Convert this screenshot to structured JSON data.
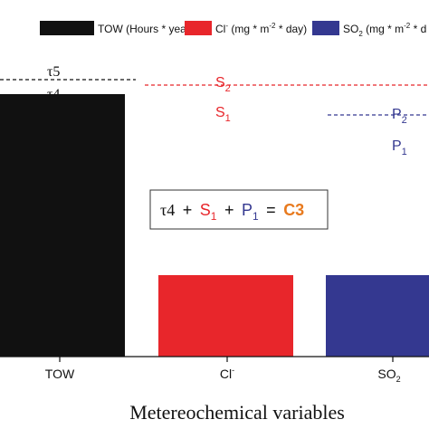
{
  "chart_data": {
    "type": "bar",
    "categories": [
      "TOW",
      "Cl",
      "SO2"
    ],
    "values": [
      2900,
      900,
      900
    ],
    "series": [
      {
        "name": "TOW (Hours * year-1)",
        "color": "#111111"
      },
      {
        "name": "Cl- (mg * m-2 * day)",
        "color": "#e8262b"
      },
      {
        "name": "SO2 (mg * m-2 * d",
        "color": "#343890"
      }
    ],
    "xlabel": "Metereochemical variables",
    "ylabel": "",
    "ylim": [
      0,
      3500
    ],
    "grid": false,
    "legend_position": "top",
    "thresholds": [
      {
        "label": "τ5",
        "category": "TOW",
        "value": 3060,
        "color": "#111111"
      },
      {
        "label": "τ4",
        "category": "TOW",
        "value": 3060,
        "color": "#111111"
      },
      {
        "label": "S2",
        "category": "Cl",
        "value": 3000,
        "color": "#e8262b"
      },
      {
        "label": "S1",
        "category": "Cl",
        "value": 3000,
        "color": "#e8262b"
      },
      {
        "label": "P2",
        "category": "SO2",
        "value": 2670,
        "color": "#343890"
      },
      {
        "label": "P1",
        "category": "SO2",
        "value": 2670,
        "color": "#343890"
      }
    ],
    "annotation": {
      "parts": [
        "τ4",
        "+",
        "S",
        "1",
        "+",
        "P",
        "1",
        "=",
        "C3"
      ],
      "colors": {
        "tau": "#111111",
        "s": "#e8262b",
        "p": "#343890",
        "c": "#e87a1e"
      }
    }
  }
}
